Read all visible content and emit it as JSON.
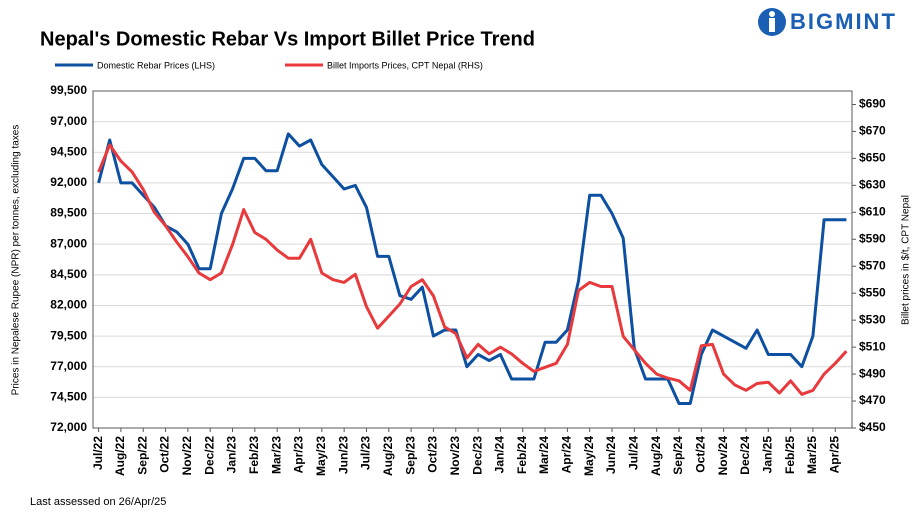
{
  "logo": "BIGMINT",
  "chart_data": {
    "type": "line",
    "title": "Nepal's Domestic Rebar Vs Import Billet Price Trend",
    "y_label": "Prices in Nepalese Rupee (NPR) per tonnes, excluding taxes",
    "y2_label": "Billet prices in $/t, CPT Nepal",
    "footnote": "Last assessed on 26/Apr/25",
    "legend": "top",
    "grid": true,
    "categories": [
      "Jul/22",
      null,
      "Aug/22",
      null,
      "Sep/22",
      null,
      "Oct/22",
      null,
      "Nov/22",
      null,
      "Dec/22",
      null,
      "Jan/23",
      null,
      "Feb/23",
      null,
      "Mar/23",
      null,
      "Apr/23",
      null,
      "May/23",
      null,
      "Jun/23",
      null,
      "Jul/23",
      null,
      "Aug/23",
      null,
      "Sep/23",
      null,
      "Oct/23",
      null,
      "Nov/23",
      null,
      "Dec/23",
      null,
      "Jan/24",
      null,
      "Feb/24",
      null,
      "Mar/24",
      null,
      "Apr/24",
      null,
      "May/24",
      null,
      "Jun/24",
      null,
      "Jul/24",
      null,
      "Aug/24",
      null,
      "Sep/24",
      null,
      "Oct/24",
      null,
      "Nov/24",
      null,
      "Dec/24",
      null,
      "Jan/25",
      null,
      "Feb/25",
      null,
      "Mar/25",
      null,
      "Apr/25",
      null
    ],
    "series": [
      {
        "name": "Domestic Rebar Prices (LHS)",
        "color": "#0d4fa0",
        "values": [
          92000,
          95500,
          92000,
          92000,
          91000,
          90000,
          88500,
          88000,
          87000,
          85000,
          85000,
          89500,
          91500,
          94000,
          94000,
          93000,
          93000,
          96000,
          95000,
          95500,
          93500,
          92500,
          91500,
          91800,
          90000,
          86000,
          86000,
          82800,
          82500,
          83500,
          79500,
          80000,
          80000,
          77000,
          78000,
          77500,
          78000,
          76000,
          76000,
          76000,
          79000,
          79000,
          80000,
          84000,
          91000,
          91000,
          89500,
          87500,
          78500,
          76000,
          76000,
          76000,
          74000,
          74000,
          78000,
          80000,
          79500,
          79000,
          78500,
          80000,
          78000,
          78000,
          78000,
          77000,
          79500,
          89000,
          89000,
          89000
        ]
      },
      {
        "name": "Billet Imports Prices, CPT Nepal (RHS)",
        "color": "#e8393c",
        "axis": "y2",
        "values": [
          640,
          660,
          648,
          640,
          627,
          610,
          600,
          588,
          577,
          565,
          560,
          565,
          586,
          612,
          595,
          590,
          582,
          576,
          576,
          590,
          565,
          560,
          558,
          564,
          540,
          524,
          533,
          542,
          555,
          560,
          548,
          525,
          520,
          502,
          512,
          505,
          510,
          505,
          498,
          492,
          495,
          498,
          512,
          552,
          558,
          555,
          555,
          518,
          508,
          498,
          490,
          487,
          485,
          478,
          511,
          512,
          490,
          482,
          478,
          483,
          484,
          476,
          485,
          475,
          478,
          490,
          498,
          507
        ]
      }
    ],
    "ylim": [
      72000,
      99500
    ],
    "yticks": [
      {
        "value": 72000,
        "label": "72,000"
      },
      {
        "value": 74500,
        "label": "74,500"
      },
      {
        "value": 77000,
        "label": "77,000"
      },
      {
        "value": 79500,
        "label": "79,500"
      },
      {
        "value": 82000,
        "label": "82,000"
      },
      {
        "value": 84500,
        "label": "84,500"
      },
      {
        "value": 87000,
        "label": "87,000"
      },
      {
        "value": 89500,
        "label": "89,500"
      },
      {
        "value": 92000,
        "label": "92,000"
      },
      {
        "value": 94500,
        "label": "94,500"
      },
      {
        "value": 97000,
        "label": "97,000"
      },
      {
        "value": 99500,
        "label": "99,500"
      }
    ],
    "y2lim": [
      450,
      700
    ],
    "y2ticks": [
      {
        "value": 450,
        "label": "$450"
      },
      {
        "value": 470,
        "label": "$470"
      },
      {
        "value": 490,
        "label": "$490"
      },
      {
        "value": 510,
        "label": "$510"
      },
      {
        "value": 530,
        "label": "$530"
      },
      {
        "value": 550,
        "label": "$550"
      },
      {
        "value": 570,
        "label": "$570"
      },
      {
        "value": 590,
        "label": "$590"
      },
      {
        "value": 610,
        "label": "$610"
      },
      {
        "value": 630,
        "label": "$630"
      },
      {
        "value": 650,
        "label": "$650"
      },
      {
        "value": 670,
        "label": "$670"
      },
      {
        "value": 690,
        "label": "$690"
      }
    ]
  }
}
